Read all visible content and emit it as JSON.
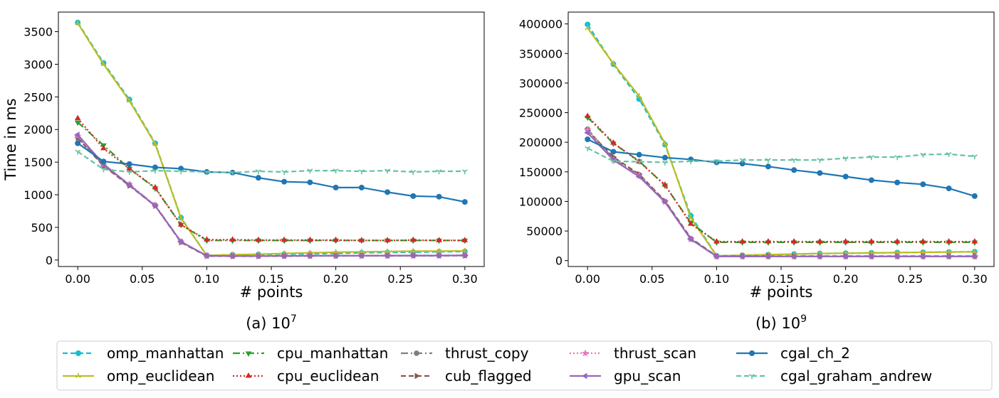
{
  "chart_data": [
    {
      "type": "line",
      "caption": "(a) 10",
      "caption_sup": "7",
      "xlabel": "# points",
      "ylabel": "Time in ms",
      "xlim": [
        -0.015,
        0.315
      ],
      "ylim": [
        -100,
        3800
      ],
      "xticks": [
        0.0,
        0.05,
        0.1,
        0.15,
        0.2,
        0.25,
        0.3
      ],
      "xtick_labels": [
        "0.00",
        "0.05",
        "0.10",
        "0.15",
        "0.20",
        "0.25",
        "0.30"
      ],
      "yticks": [
        0,
        500,
        1000,
        1500,
        2000,
        2500,
        3000,
        3500
      ],
      "ytick_labels": [
        "0",
        "500",
        "1000",
        "1500",
        "2000",
        "2500",
        "3000",
        "3500"
      ],
      "x": [
        0.0,
        0.02,
        0.04,
        0.06,
        0.08,
        0.1,
        0.12,
        0.14,
        0.16,
        0.18,
        0.2,
        0.22,
        0.24,
        0.26,
        0.28,
        0.3
      ],
      "series": [
        {
          "name": "omp_manhattan",
          "values": [
            3640,
            3020,
            2460,
            1790,
            650,
            70,
            80,
            85,
            90,
            95,
            100,
            110,
            115,
            120,
            125,
            130
          ]
        },
        {
          "name": "omp_euclidean",
          "values": [
            3630,
            3000,
            2440,
            1780,
            640,
            70,
            80,
            90,
            100,
            110,
            120,
            125,
            130,
            135,
            135,
            140
          ]
        },
        {
          "name": "cpu_manhattan",
          "values": [
            2110,
            1760,
            1400,
            1100,
            540,
            300,
            300,
            300,
            300,
            300,
            300,
            300,
            300,
            300,
            300,
            300
          ]
        },
        {
          "name": "cpu_euclidean",
          "values": [
            2170,
            1710,
            1400,
            1110,
            540,
            310,
            310,
            305,
            305,
            305,
            305,
            300,
            300,
            305,
            300,
            300
          ]
        },
        {
          "name": "thrust_copy",
          "values": [
            1880,
            1450,
            1150,
            840,
            280,
            65,
            60,
            60,
            62,
            64,
            65,
            66,
            67,
            68,
            68,
            70
          ]
        },
        {
          "name": "cub_flagged",
          "values": [
            1870,
            1440,
            1140,
            830,
            270,
            60,
            58,
            58,
            60,
            62,
            63,
            64,
            65,
            66,
            66,
            68
          ]
        },
        {
          "name": "thrust_scan",
          "values": [
            1900,
            1460,
            1160,
            840,
            280,
            65,
            62,
            62,
            64,
            66,
            67,
            68,
            69,
            70,
            70,
            72
          ]
        },
        {
          "name": "gpu_scan",
          "values": [
            1920,
            1470,
            1150,
            830,
            280,
            65,
            60,
            60,
            62,
            64,
            65,
            66,
            67,
            68,
            68,
            70
          ]
        },
        {
          "name": "cgal_ch_2",
          "values": [
            1790,
            1510,
            1470,
            1420,
            1400,
            1350,
            1340,
            1260,
            1200,
            1190,
            1110,
            1110,
            1040,
            980,
            970,
            890
          ]
        },
        {
          "name": "cgal_graham_andrew",
          "values": [
            1660,
            1390,
            1350,
            1370,
            1360,
            1350,
            1340,
            1360,
            1350,
            1370,
            1370,
            1360,
            1370,
            1350,
            1360,
            1360
          ]
        }
      ]
    },
    {
      "type": "line",
      "caption": "(b) 10",
      "caption_sup": "9",
      "xlabel": "# points",
      "ylabel": "",
      "xlim": [
        -0.015,
        0.315
      ],
      "ylim": [
        -10000,
        420000
      ],
      "xticks": [
        0.0,
        0.05,
        0.1,
        0.15,
        0.2,
        0.25,
        0.3
      ],
      "xtick_labels": [
        "0.00",
        "0.05",
        "0.10",
        "0.15",
        "0.20",
        "0.25",
        "0.30"
      ],
      "yticks": [
        0,
        50000,
        100000,
        150000,
        200000,
        250000,
        300000,
        350000,
        400000
      ],
      "ytick_labels": [
        "0",
        "50000",
        "100000",
        "150000",
        "200000",
        "250000",
        "300000",
        "350000",
        "400000"
      ],
      "x": [
        0.0,
        0.02,
        0.04,
        0.06,
        0.08,
        0.1,
        0.12,
        0.14,
        0.16,
        0.18,
        0.2,
        0.22,
        0.24,
        0.26,
        0.28,
        0.3
      ],
      "series": [
        {
          "name": "omp_manhattan",
          "values": [
            399000,
            332000,
            273000,
            196000,
            76000,
            8000,
            9000,
            10000,
            11000,
            12000,
            12500,
            13000,
            13500,
            14000,
            14500,
            15000
          ]
        },
        {
          "name": "omp_euclidean",
          "values": [
            393000,
            333000,
            278000,
            198000,
            72000,
            8000,
            9000,
            10000,
            11000,
            12000,
            12500,
            13000,
            13500,
            14000,
            14500,
            15000
          ]
        },
        {
          "name": "cpu_manhattan",
          "values": [
            242000,
            198000,
            168000,
            127000,
            64000,
            31000,
            31000,
            31000,
            31000,
            31000,
            31000,
            31000,
            31000,
            31000,
            31000,
            31000
          ]
        },
        {
          "name": "cpu_euclidean",
          "values": [
            244000,
            199000,
            167000,
            128000,
            62000,
            32000,
            32000,
            32000,
            32000,
            32000,
            32000,
            32000,
            32000,
            32000,
            32000,
            32000
          ]
        },
        {
          "name": "thrust_copy",
          "values": [
            222000,
            172000,
            145000,
            100000,
            37000,
            7000,
            7000,
            7000,
            7000,
            7000,
            7000,
            7000,
            7000,
            7000,
            7000,
            7000
          ]
        },
        {
          "name": "cub_flagged",
          "values": [
            220000,
            175000,
            146000,
            101000,
            38000,
            7500,
            7500,
            7500,
            7500,
            7500,
            7500,
            7500,
            7500,
            7500,
            7500,
            7500
          ]
        },
        {
          "name": "thrust_scan",
          "values": [
            221000,
            170000,
            144000,
            99000,
            36000,
            7000,
            7000,
            7000,
            7000,
            7000,
            7000,
            7000,
            7000,
            7000,
            7000,
            7000
          ]
        },
        {
          "name": "gpu_scan",
          "values": [
            216000,
            170000,
            142000,
            99000,
            36000,
            7000,
            7000,
            7000,
            7000,
            7000,
            7000,
            7000,
            7000,
            7000,
            7000,
            7000
          ]
        },
        {
          "name": "cgal_ch_2",
          "values": [
            205000,
            184000,
            179000,
            174000,
            171000,
            166000,
            164000,
            159000,
            153000,
            148000,
            142000,
            136000,
            132000,
            129000,
            122000,
            109000
          ]
        },
        {
          "name": "cgal_graham_andrew",
          "values": [
            190000,
            168000,
            167000,
            166000,
            168000,
            168000,
            170000,
            170000,
            170000,
            170000,
            173000,
            175000,
            175000,
            179000,
            180000,
            176000
          ]
        }
      ]
    }
  ],
  "styles": [
    {
      "name": "omp_manhattan",
      "color": "#17becf",
      "dash": "7,4",
      "marker": "circle"
    },
    {
      "name": "omp_euclidean",
      "color": "#bcbd22",
      "dash": "",
      "marker": "tri_up"
    },
    {
      "name": "cpu_manhattan",
      "color": "#2ca02c",
      "dash": "10,4,2,4",
      "marker": "triangle_down"
    },
    {
      "name": "cpu_euclidean",
      "color": "#d62728",
      "dash": "2,3",
      "marker": "triangle_up"
    },
    {
      "name": "thrust_copy",
      "color": "#7f7f7f",
      "dash": "10,4,2,4",
      "marker": "octagon"
    },
    {
      "name": "cub_flagged",
      "color": "#8c564b",
      "dash": "7,4",
      "marker": "triangle_right"
    },
    {
      "name": "thrust_scan",
      "color": "#e377c2",
      "dash": "2,3",
      "marker": "star"
    },
    {
      "name": "gpu_scan",
      "color": "#9467bd",
      "dash": "",
      "marker": "triangle_left"
    },
    {
      "name": "cgal_ch_2",
      "color": "#1f77b4",
      "dash": "",
      "marker": "circle"
    },
    {
      "name": "cgal_graham_andrew",
      "color": "#66c2a5",
      "dash": "7,4",
      "marker": "tri_down"
    }
  ],
  "legend": {
    "placement": "bottom-center",
    "columns": 5
  }
}
